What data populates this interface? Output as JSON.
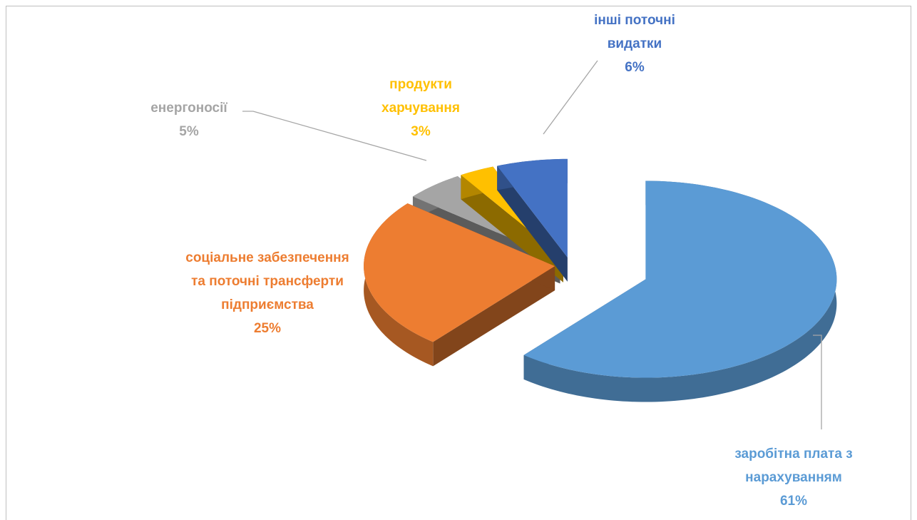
{
  "chart_data": {
    "type": "pie",
    "categories": [
      "заробітна плата з нарахуванням",
      "соціальне забезпечення та поточні трансферти підприємства",
      "енергоносії",
      "продукти харчування",
      "інші поточні видатки"
    ],
    "values": [
      61,
      25,
      5,
      3,
      6
    ],
    "value_labels": [
      "61%",
      "25%",
      "5%",
      "3%",
      "6%"
    ],
    "colors": [
      "#5b9bd5",
      "#ed7d31",
      "#a5a5a5",
      "#ffc000",
      "#4472c4"
    ]
  }
}
